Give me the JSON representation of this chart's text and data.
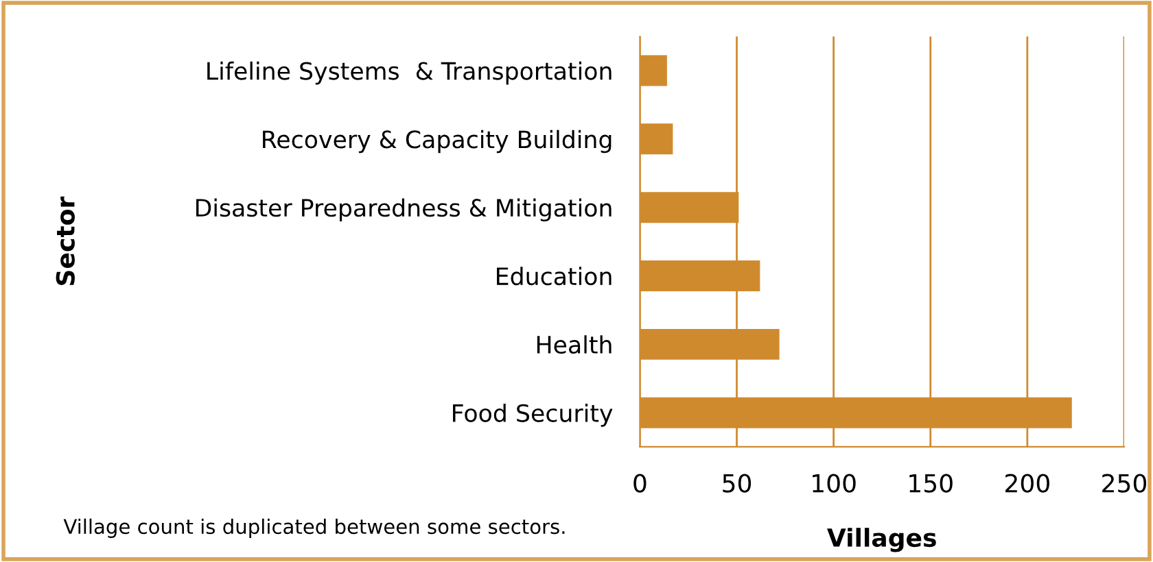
{
  "chart_data": {
    "type": "bar",
    "orientation": "horizontal",
    "categories": [
      "Lifeline Systems  & Transportation",
      "Recovery & Capacity Building",
      "Disaster Preparedness & Mitigation",
      "Education",
      "Health",
      "Food Security"
    ],
    "values": [
      14,
      17,
      51,
      62,
      72,
      223
    ],
    "color": "#d08a2e",
    "xlabel": "Villages",
    "ylabel": "Sector",
    "xlim": [
      0,
      250
    ],
    "xticks": [
      0,
      50,
      100,
      150,
      200,
      250
    ],
    "grid": "x",
    "annotations": [
      "Village count is duplicated between some sectors."
    ]
  }
}
